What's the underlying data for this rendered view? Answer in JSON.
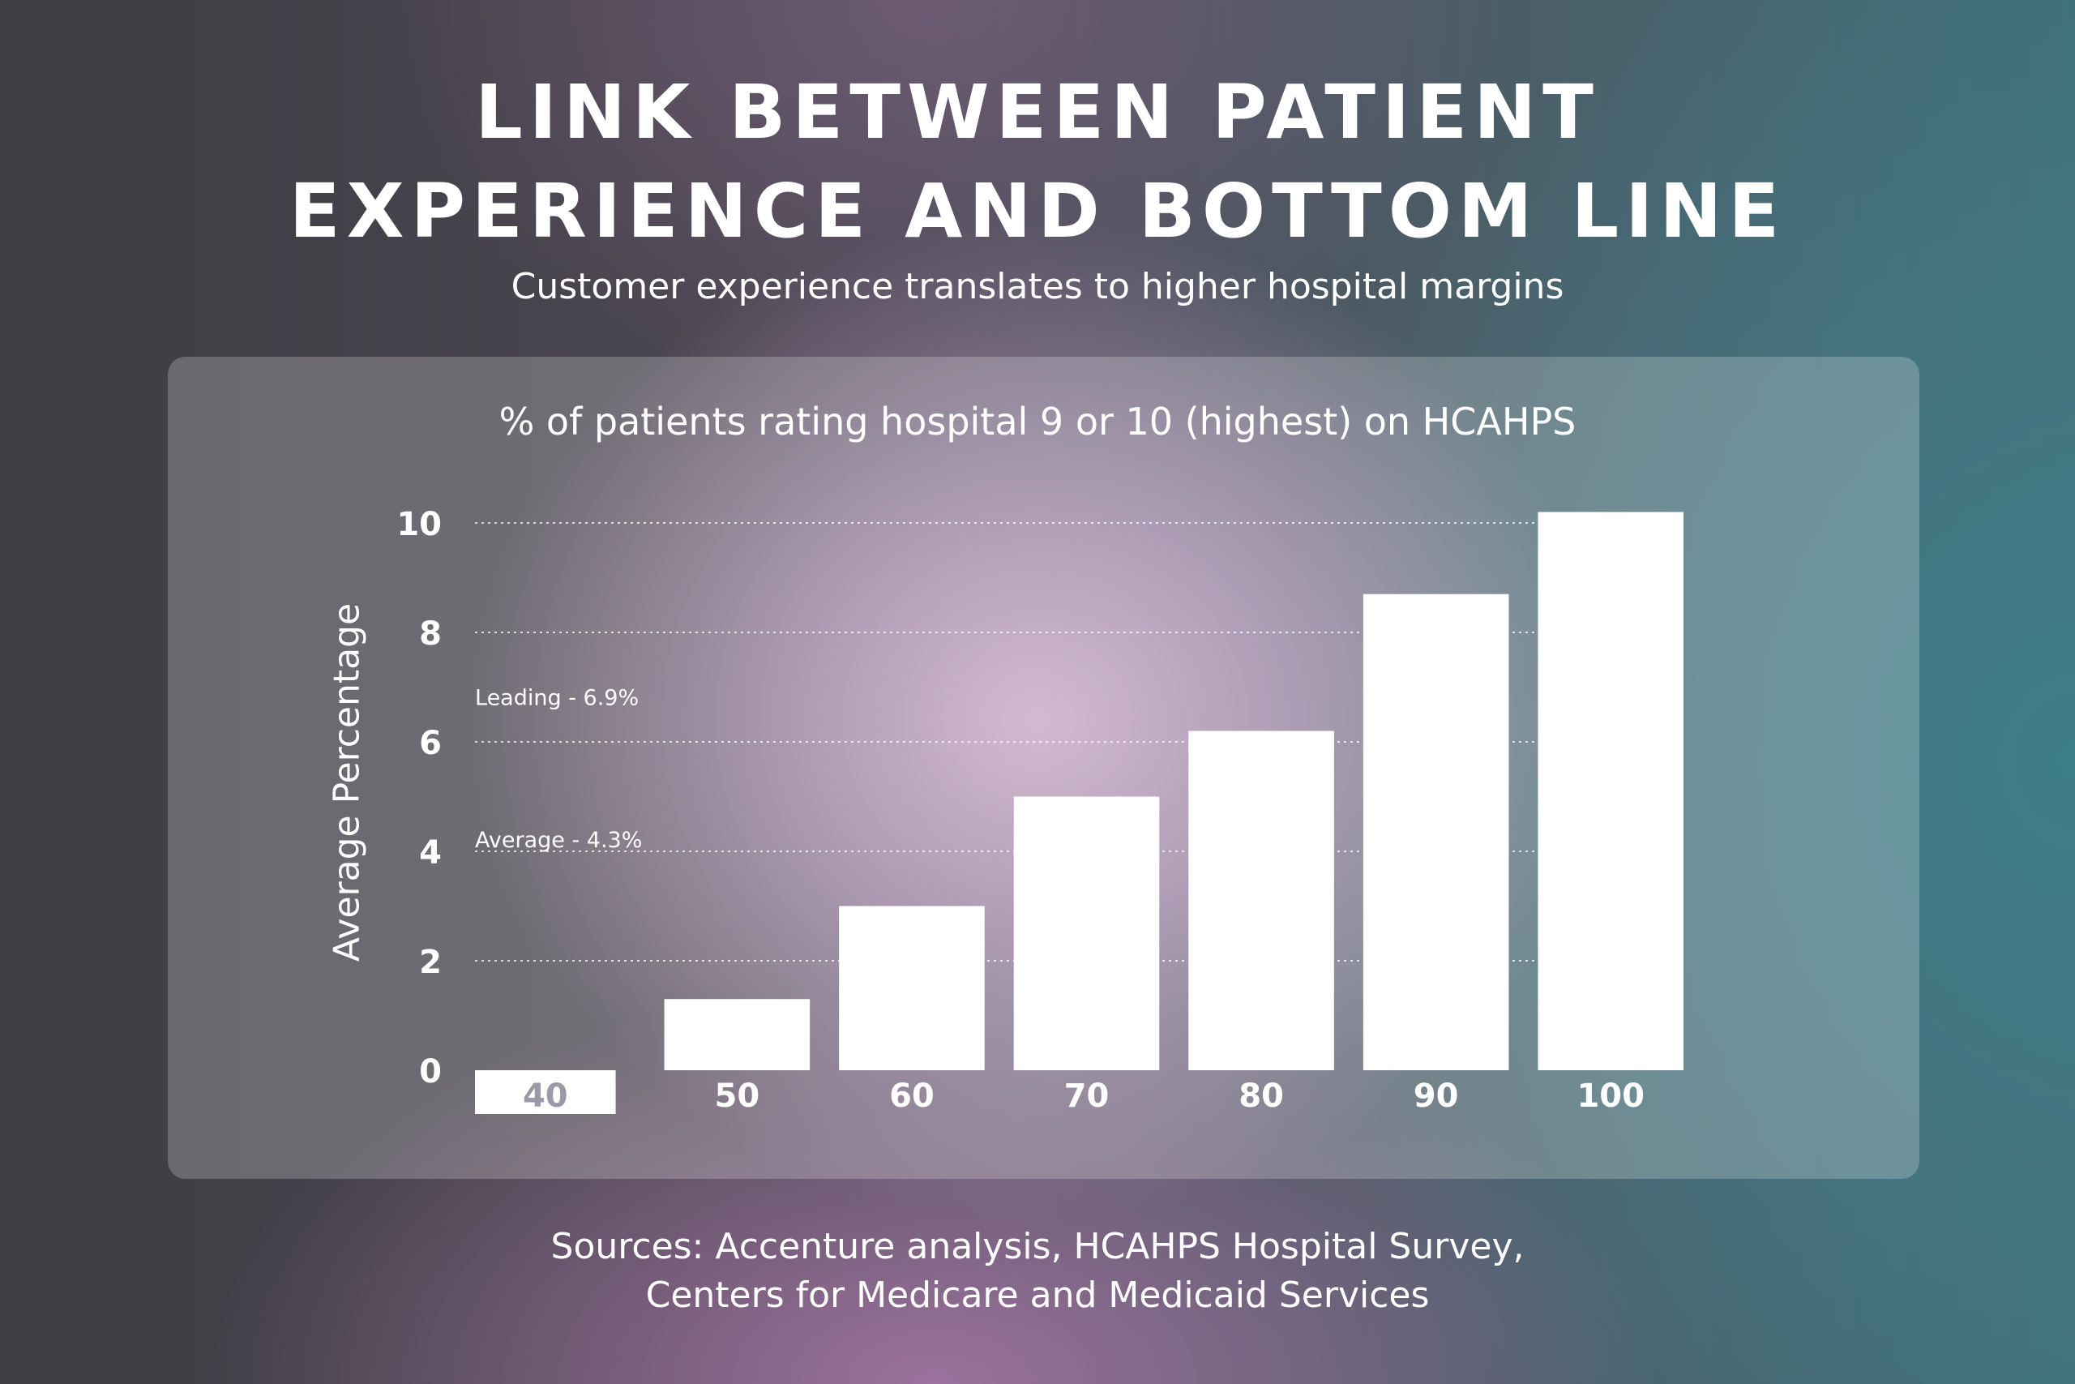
{
  "header": {
    "title_line1": "LINK BETWEEN PATIENT",
    "title_line2": "EXPERIENCE AND BOTTOM LINE",
    "subtitle": "Customer experience translates to higher hospital margins"
  },
  "chart_data": {
    "type": "bar",
    "title": "% of patients rating hospital 9 or 10 (highest) on HCAHPS",
    "xlabel": "",
    "ylabel": "Average Percentage",
    "categories": [
      "40",
      "50",
      "60",
      "70",
      "80",
      "90",
      "100"
    ],
    "values": [
      -0.8,
      1.3,
      3.0,
      5.0,
      6.2,
      8.7,
      10.2
    ],
    "ylim": [
      0,
      10
    ],
    "yticks": [
      0,
      2,
      4,
      6,
      8,
      10
    ],
    "grid": true,
    "reference_lines": [
      {
        "label": "Leading - 6.9%",
        "value": 6.9
      },
      {
        "label": "Average - 4.3%",
        "value": 4.3
      }
    ],
    "bar_color": "#ffffff",
    "first_label_color": "#9a9aa6"
  },
  "footer": {
    "sources_line1": "Sources: Accenture analysis, HCAHPS Hospital Survey,",
    "sources_line2": "Centers for Medicare and Medicaid Services"
  }
}
